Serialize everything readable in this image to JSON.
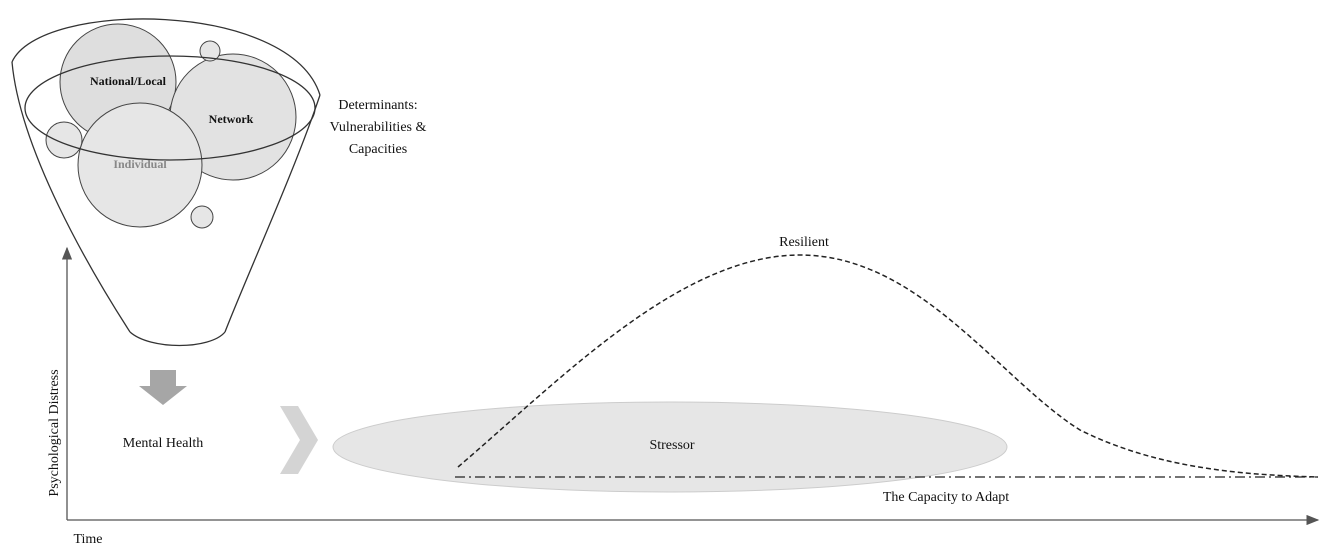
{
  "funnel": {
    "circles": [
      "National/Local",
      "Network",
      "Individual"
    ],
    "label": [
      "Determinants:",
      "Vulnerabilities &",
      "Capacities"
    ]
  },
  "outcome": "Mental Health",
  "stressor": "Stressor",
  "curves": {
    "resilient": "Resilient",
    "baseline": "The Capacity to Adapt"
  },
  "axes": {
    "y": "Psychological Distress",
    "x": "Time"
  }
}
